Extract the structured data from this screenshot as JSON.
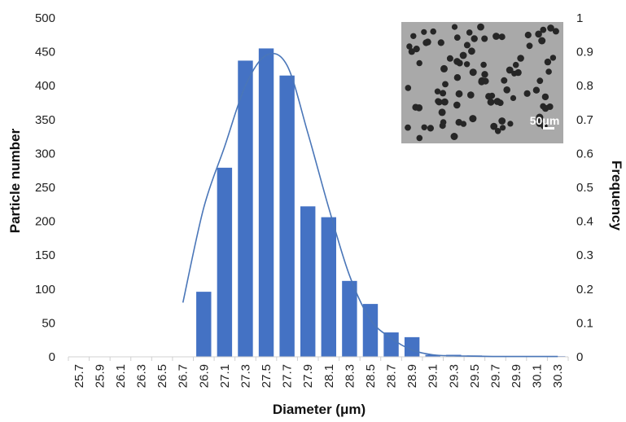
{
  "chart_data": {
    "type": "bar",
    "xlabel": "Diameter (μm)",
    "ylabel": "Particle number",
    "y2label": "Frequency",
    "categories": [
      "25.7",
      "25.9",
      "26.1",
      "26.3",
      "26.5",
      "26.7",
      "26.9",
      "27.1",
      "27.3",
      "27.5",
      "27.7",
      "27.9",
      "28.1",
      "28.3",
      "28.5",
      "28.7",
      "28.9",
      "29.1",
      "29.3",
      "29.5",
      "29.7",
      "29.9",
      "30.1",
      "30.3"
    ],
    "series": [
      {
        "values": [
          0,
          0,
          0,
          0,
          0,
          0,
          96,
          279,
          437,
          455,
          415,
          222,
          206,
          112,
          78,
          36,
          29,
          3,
          3,
          2,
          1,
          1,
          1,
          1
        ]
      }
    ],
    "curve": {
      "x": [
        "26.7",
        "26.9",
        "27.1",
        "27.3",
        "27.5",
        "27.7",
        "27.9",
        "28.1",
        "28.3",
        "28.5",
        "28.7",
        "28.9",
        "29.1",
        "29.3",
        "29.5",
        "29.7",
        "29.9",
        "30.1",
        "30.3"
      ],
      "values": [
        0.16,
        0.44,
        0.62,
        0.8,
        0.89,
        0.86,
        0.66,
        0.44,
        0.24,
        0.11,
        0.055,
        0.02,
        0.006,
        0.003,
        0.002,
        0.001,
        0.001,
        0.001,
        0.001
      ]
    },
    "ylim": [
      0,
      500
    ],
    "yticks": [
      0,
      50,
      100,
      150,
      200,
      250,
      300,
      350,
      400,
      450,
      500
    ],
    "y2lim": [
      0,
      1
    ],
    "y2ticks": [
      "0",
      "0.1",
      "0.2",
      "0.3",
      "0.4",
      "0.5",
      "0.6",
      "0.7",
      "0.8",
      "0.9",
      "1"
    ],
    "grid": false,
    "legend": "none",
    "colors": {
      "bar": "#4472c4",
      "curve": "#4a76b8"
    },
    "inset": {
      "scale_label": "50μm"
    }
  }
}
